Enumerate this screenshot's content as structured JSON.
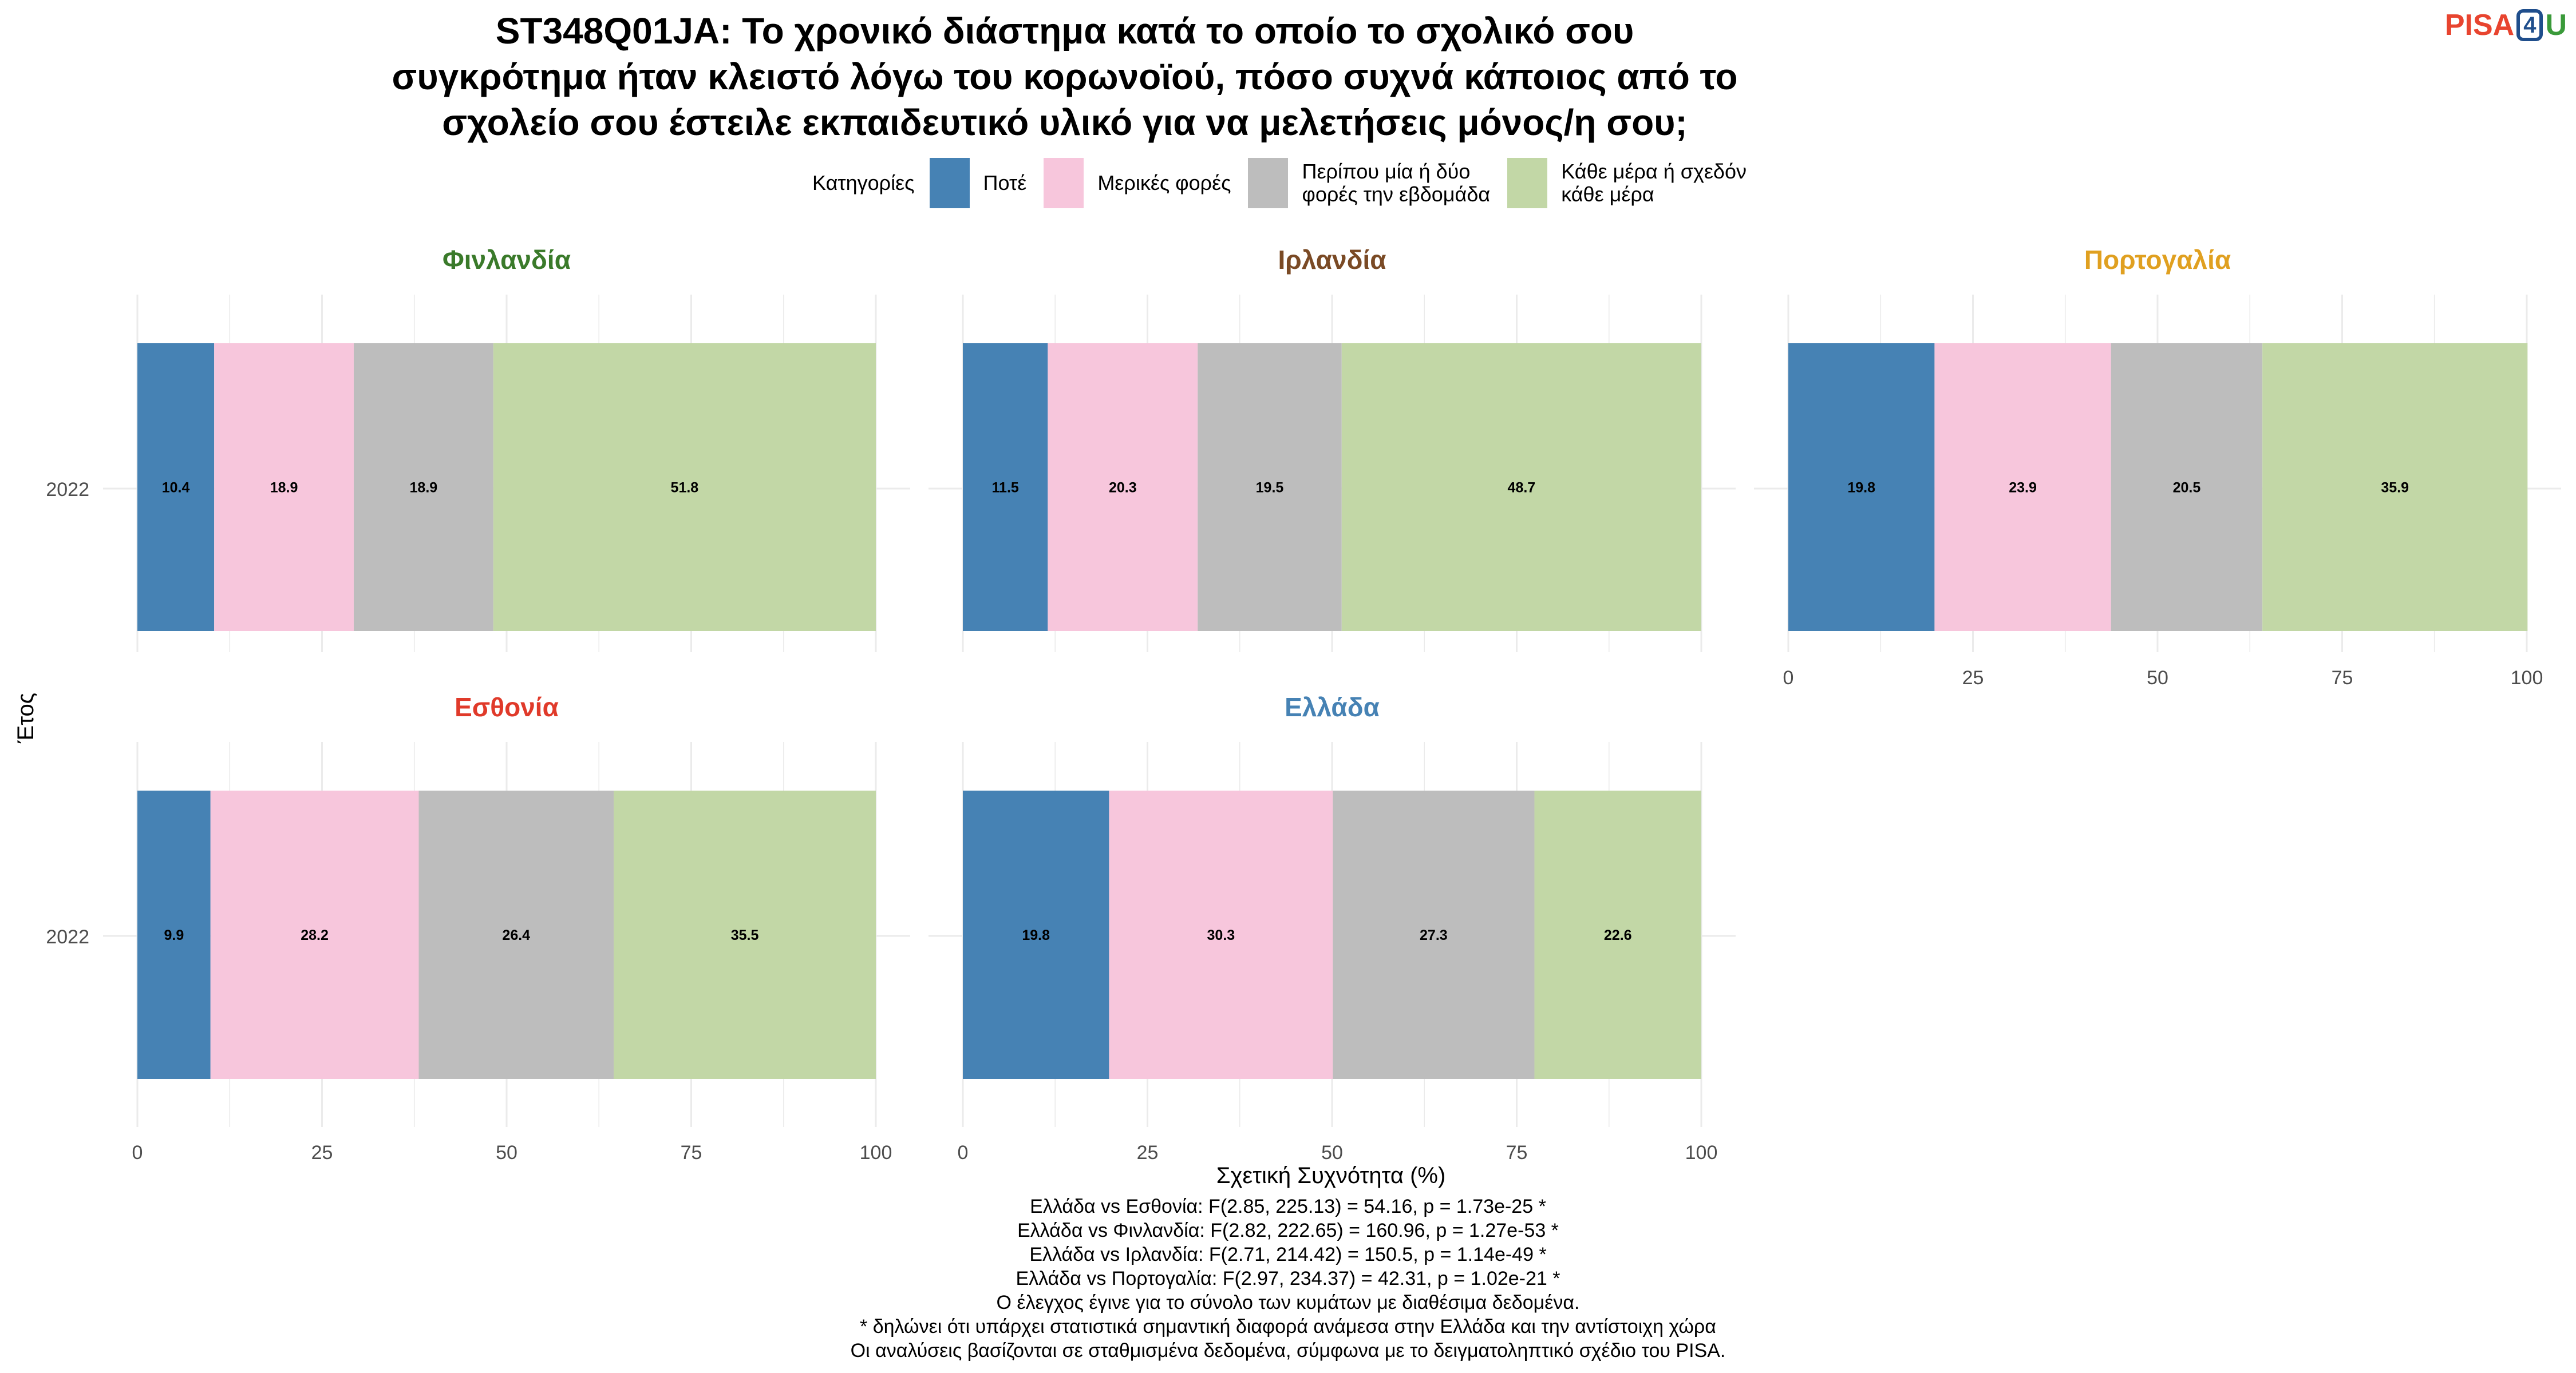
{
  "title_lines": [
    "ST348Q01JA: Το χρονικό διάστημα κατά το οποίο το σχολικό σου",
    "συγκρότημα ήταν κλειστό λόγω του κορωνοϊού, πόσο συχνά κάποιος από το",
    "σχολείο σου έστειλε εκπαιδευτικό υλικό για να μελετήσεις μόνος/η σου;"
  ],
  "logo": {
    "part1": "PISA",
    "part2": "4",
    "part3": "U",
    "color1": "#e8442f",
    "color2": "#1f4e8c",
    "color3": "#3a9a3a"
  },
  "legend": {
    "title": "Κατηγορίες",
    "items": [
      {
        "lines": [
          "Ποτέ"
        ],
        "color": "#4682b4"
      },
      {
        "lines": [
          "Μερικές φορές"
        ],
        "color": "#f7c6dc"
      },
      {
        "lines": [
          "Περίπου μία ή δύο",
          "φορές την εβδομάδα"
        ],
        "color": "#bdbdbd"
      },
      {
        "lines": [
          "Κάθε μέρα ή σχεδόν",
          "κάθε μέρα"
        ],
        "color": "#c2d7a6"
      }
    ]
  },
  "chart_data": {
    "type": "bar",
    "orientation": "horizontal-stacked",
    "xlabel": "Σχετική Συχνότητα (%)",
    "ylabel": "Έτος",
    "xlim": [
      0,
      100
    ],
    "xticks": [
      0,
      25,
      50,
      75,
      100
    ],
    "categories": [
      "2022"
    ],
    "series_names": [
      "Ποτέ",
      "Μερικές φορές",
      "Περίπου μία ή δύο φορές την εβδομάδα",
      "Κάθε μέρα ή σχεδόν κάθε μέρα"
    ],
    "series_colors": [
      "#4682b4",
      "#f7c6dc",
      "#bdbdbd",
      "#c2d7a6"
    ],
    "panels": [
      {
        "name": "Φινλανδία",
        "color": "#3a7a2a",
        "values": [
          10.4,
          18.9,
          18.9,
          51.8
        ]
      },
      {
        "name": "Ιρλανδία",
        "color": "#7a4a25",
        "values": [
          11.5,
          20.3,
          19.5,
          48.7
        ]
      },
      {
        "name": "Πορτογαλία",
        "color": "#e0a020",
        "values": [
          19.8,
          23.9,
          20.5,
          35.9
        ]
      },
      {
        "name": "Εσθονία",
        "color": "#e03a2a",
        "values": [
          9.9,
          28.2,
          26.4,
          35.5
        ]
      },
      {
        "name": "Ελλάδα",
        "color": "#4682b4",
        "values": [
          19.8,
          30.3,
          27.3,
          22.6
        ]
      }
    ]
  },
  "footer_lines": [
    "Ελλάδα vs Εσθονία: F(2.85, 225.13) = 54.16, p = 1.73e-25 *",
    "Ελλάδα vs Φινλανδία: F(2.82, 222.65) = 160.96, p = 1.27e-53 *",
    "Ελλάδα vs Ιρλανδία: F(2.71, 214.42) = 150.5, p = 1.14e-49 *",
    "Ελλάδα vs Πορτογαλία: F(2.97, 234.37) = 42.31, p = 1.02e-21 *",
    "Ο έλεγχος έγινε για το σύνολο των κυμάτων με διαθέσιμα δεδομένα.",
    "* δηλώνει ότι υπάρχει στατιστικά σημαντική διαφορά ανάμεσα στην Ελλάδα και την αντίστοιχη χώρα",
    "Οι αναλύσεις βασίζονται σε σταθμισμένα δεδομένα, σύμφωνα με το δειγματοληπτικό σχέδιο του PISA."
  ]
}
